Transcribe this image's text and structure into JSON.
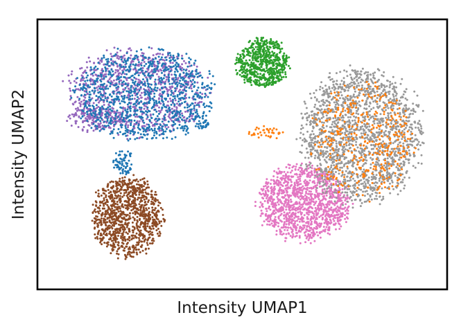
{
  "chart_data": {
    "type": "scatter",
    "xlabel": "Intensity UMAP1",
    "ylabel": "Intensity UMAP2",
    "xlim": [
      0,
      100
    ],
    "ylim": [
      0,
      100
    ],
    "grid": false,
    "ticks": false,
    "legend": "none",
    "series": [
      {
        "color": "#9467bd",
        "clusters": [
          {
            "cx": 24,
            "cy": 73,
            "rx": 17,
            "ry": 16,
            "n": 950
          },
          {
            "cx": 14,
            "cy": 63,
            "rx": 7,
            "ry": 5,
            "n": 120
          }
        ]
      },
      {
        "color": "#1f77b4",
        "clusters": [
          {
            "cx": 26,
            "cy": 72,
            "rx": 17,
            "ry": 17,
            "n": 1000
          },
          {
            "cx": 21,
            "cy": 47,
            "rx": 2.5,
            "ry": 5,
            "n": 70
          },
          {
            "cx": 40,
            "cy": 62,
            "rx": 2,
            "ry": 3,
            "n": 40
          }
        ]
      },
      {
        "color": "#2ca02c",
        "clusters": [
          {
            "cx": 55,
            "cy": 84,
            "rx": 6.5,
            "ry": 9,
            "n": 650
          }
        ]
      },
      {
        "color": "#8c4a24",
        "clusters": [
          {
            "cx": 22,
            "cy": 27,
            "rx": 8.5,
            "ry": 15,
            "n": 1050
          }
        ]
      },
      {
        "color": "#e377c2",
        "clusters": [
          {
            "cx": 65,
            "cy": 32,
            "rx": 11,
            "ry": 14,
            "n": 1250
          }
        ]
      },
      {
        "color": "#999999",
        "clusters": [
          {
            "cx": 79,
            "cy": 57,
            "rx": 15,
            "ry": 25,
            "n": 1800
          }
        ]
      },
      {
        "color": "#ff7f0e",
        "clusters": [
          {
            "cx": 79,
            "cy": 55,
            "rx": 13,
            "ry": 21,
            "n": 380
          },
          {
            "cx": 56,
            "cy": 58,
            "rx": 5,
            "ry": 2.5,
            "n": 40
          }
        ]
      }
    ]
  }
}
